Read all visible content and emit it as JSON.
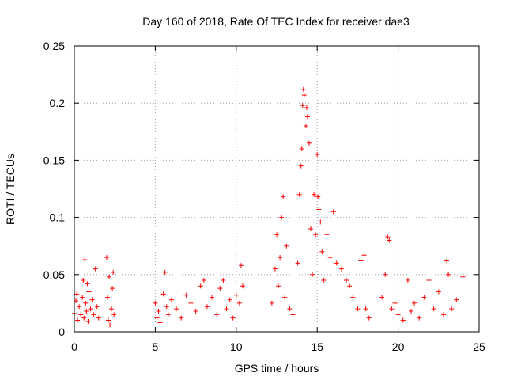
{
  "chart_data": {
    "type": "scatter",
    "title": "Day 160 of 2018, Rate Of TEC Index for receiver dae3",
    "xlabel": "GPS time / hours",
    "ylabel": "ROTI / TECUs",
    "xlim": [
      0,
      25
    ],
    "ylim": [
      0,
      0.25
    ],
    "x_ticks": [
      "0",
      "5",
      "10",
      "15",
      "20",
      "25"
    ],
    "y_ticks": [
      "0",
      "0.05",
      "0.1",
      "0.15",
      "0.2",
      "0.25"
    ],
    "grid": true,
    "marker": "plus",
    "colors": {
      "points": "#ff0000",
      "grid": "#a0a0a0",
      "axes": "#000000"
    },
    "series": [
      {
        "values": [
          [
            0.0,
            0.016
          ],
          [
            0.1,
            0.027
          ],
          [
            0.15,
            0.033
          ],
          [
            0.2,
            0.01
          ],
          [
            0.3,
            0.022
          ],
          [
            0.4,
            0.015
          ],
          [
            0.5,
            0.03
          ],
          [
            0.55,
            0.045
          ],
          [
            0.6,
            0.012
          ],
          [
            0.65,
            0.063
          ],
          [
            0.7,
            0.025
          ],
          [
            0.75,
            0.018
          ],
          [
            0.8,
            0.042
          ],
          [
            0.85,
            0.009
          ],
          [
            0.9,
            0.035
          ],
          [
            1.0,
            0.02
          ],
          [
            1.1,
            0.028
          ],
          [
            1.2,
            0.015
          ],
          [
            1.3,
            0.055
          ],
          [
            1.4,
            0.022
          ],
          [
            1.5,
            0.012
          ],
          [
            2.0,
            0.065
          ],
          [
            2.05,
            0.03
          ],
          [
            2.1,
            0.01
          ],
          [
            2.15,
            0.048
          ],
          [
            2.2,
            0.006
          ],
          [
            2.3,
            0.02
          ],
          [
            2.35,
            0.038
          ],
          [
            2.4,
            0.052
          ],
          [
            2.45,
            0.015
          ],
          [
            5.0,
            0.025
          ],
          [
            5.1,
            0.012
          ],
          [
            5.2,
            0.018
          ],
          [
            5.3,
            0.008
          ],
          [
            5.5,
            0.033
          ],
          [
            5.6,
            0.052
          ],
          [
            5.7,
            0.022
          ],
          [
            5.8,
            0.015
          ],
          [
            6.0,
            0.028
          ],
          [
            6.3,
            0.02
          ],
          [
            6.6,
            0.012
          ],
          [
            6.9,
            0.032
          ],
          [
            7.2,
            0.025
          ],
          [
            7.5,
            0.018
          ],
          [
            7.8,
            0.04
          ],
          [
            8.0,
            0.045
          ],
          [
            8.2,
            0.022
          ],
          [
            8.5,
            0.03
          ],
          [
            8.8,
            0.015
          ],
          [
            9.0,
            0.038
          ],
          [
            9.2,
            0.045
          ],
          [
            9.4,
            0.02
          ],
          [
            9.6,
            0.028
          ],
          [
            9.8,
            0.012
          ],
          [
            10.0,
            0.032
          ],
          [
            10.2,
            0.025
          ],
          [
            10.3,
            0.058
          ],
          [
            10.4,
            0.04
          ],
          [
            12.2,
            0.025
          ],
          [
            12.4,
            0.055
          ],
          [
            12.5,
            0.085
          ],
          [
            12.6,
            0.04
          ],
          [
            12.7,
            0.065
          ],
          [
            12.8,
            0.1
          ],
          [
            12.9,
            0.118
          ],
          [
            13.0,
            0.03
          ],
          [
            13.1,
            0.075
          ],
          [
            13.3,
            0.02
          ],
          [
            13.5,
            0.015
          ],
          [
            13.8,
            0.06
          ],
          [
            13.9,
            0.12
          ],
          [
            14.0,
            0.145
          ],
          [
            14.05,
            0.16
          ],
          [
            14.1,
            0.198
          ],
          [
            14.15,
            0.212
          ],
          [
            14.2,
            0.207
          ],
          [
            14.3,
            0.18
          ],
          [
            14.35,
            0.196
          ],
          [
            14.4,
            0.188
          ],
          [
            14.5,
            0.165
          ],
          [
            14.6,
            0.09
          ],
          [
            14.7,
            0.05
          ],
          [
            14.8,
            0.12
          ],
          [
            14.9,
            0.085
          ],
          [
            15.0,
            0.155
          ],
          [
            15.05,
            0.118
          ],
          [
            15.1,
            0.107
          ],
          [
            15.2,
            0.096
          ],
          [
            15.3,
            0.07
          ],
          [
            15.4,
            0.045
          ],
          [
            15.6,
            0.085
          ],
          [
            15.8,
            0.065
          ],
          [
            16.0,
            0.105
          ],
          [
            16.2,
            0.06
          ],
          [
            16.5,
            0.055
          ],
          [
            16.8,
            0.045
          ],
          [
            17.0,
            0.04
          ],
          [
            17.2,
            0.03
          ],
          [
            17.5,
            0.02
          ],
          [
            17.7,
            0.062
          ],
          [
            17.9,
            0.067
          ],
          [
            18.0,
            0.02
          ],
          [
            18.2,
            0.012
          ],
          [
            19.0,
            0.03
          ],
          [
            19.2,
            0.05
          ],
          [
            19.35,
            0.083
          ],
          [
            19.45,
            0.08
          ],
          [
            19.6,
            0.02
          ],
          [
            19.8,
            0.025
          ],
          [
            20.0,
            0.015
          ],
          [
            20.3,
            0.01
          ],
          [
            20.6,
            0.045
          ],
          [
            20.8,
            0.018
          ],
          [
            21.0,
            0.025
          ],
          [
            21.3,
            0.012
          ],
          [
            21.6,
            0.03
          ],
          [
            21.9,
            0.045
          ],
          [
            22.2,
            0.02
          ],
          [
            22.5,
            0.035
          ],
          [
            22.8,
            0.015
          ],
          [
            23.0,
            0.062
          ],
          [
            23.1,
            0.05
          ],
          [
            23.3,
            0.02
          ],
          [
            23.6,
            0.028
          ],
          [
            24.0,
            0.048
          ]
        ]
      }
    ]
  }
}
